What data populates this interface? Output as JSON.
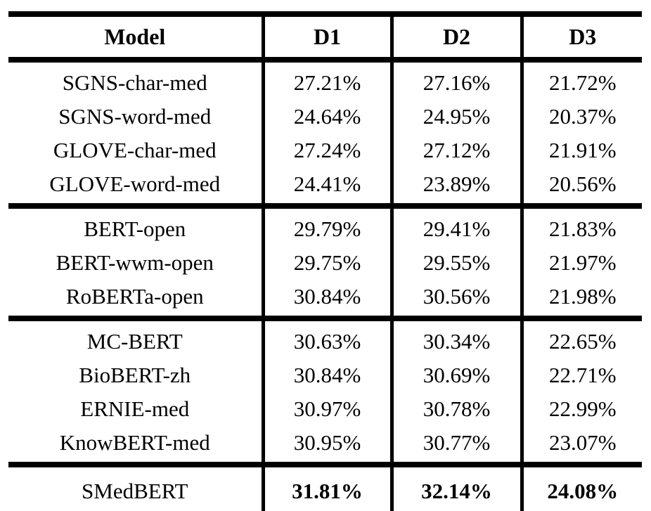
{
  "colors": {
    "text": "#000000",
    "rule": "#000000",
    "background": "#ffffff"
  },
  "table": {
    "columns": [
      "Model",
      "D1",
      "D2",
      "D3"
    ],
    "groups": [
      {
        "bold_values": false,
        "rows": [
          {
            "model": "SGNS-char-med",
            "values": [
              "27.21%",
              "27.16%",
              "21.72%"
            ]
          },
          {
            "model": "SGNS-word-med",
            "values": [
              "24.64%",
              "24.95%",
              "20.37%"
            ]
          },
          {
            "model": "GLOVE-char-med",
            "values": [
              "27.24%",
              "27.12%",
              "21.91%"
            ]
          },
          {
            "model": "GLOVE-word-med",
            "values": [
              "24.41%",
              "23.89%",
              "20.56%"
            ]
          }
        ]
      },
      {
        "bold_values": false,
        "rows": [
          {
            "model": "BERT-open",
            "values": [
              "29.79%",
              "29.41%",
              "21.83%"
            ]
          },
          {
            "model": "BERT-wwm-open",
            "values": [
              "29.75%",
              "29.55%",
              "21.97%"
            ]
          },
          {
            "model": "RoBERTa-open",
            "values": [
              "30.84%",
              "30.56%",
              "21.98%"
            ]
          }
        ]
      },
      {
        "bold_values": false,
        "rows": [
          {
            "model": "MC-BERT",
            "values": [
              "30.63%",
              "30.34%",
              "22.65%"
            ]
          },
          {
            "model": "BioBERT-zh",
            "values": [
              "30.84%",
              "30.69%",
              "22.71%"
            ]
          },
          {
            "model": "ERNIE-med",
            "values": [
              "30.97%",
              "30.78%",
              "22.99%"
            ]
          },
          {
            "model": "KnowBERT-med",
            "values": [
              "30.95%",
              "30.77%",
              "23.07%"
            ]
          }
        ]
      },
      {
        "bold_values": true,
        "rows": [
          {
            "model": "SMedBERT",
            "values": [
              "31.81%",
              "32.14%",
              "24.08%"
            ]
          }
        ]
      }
    ]
  }
}
